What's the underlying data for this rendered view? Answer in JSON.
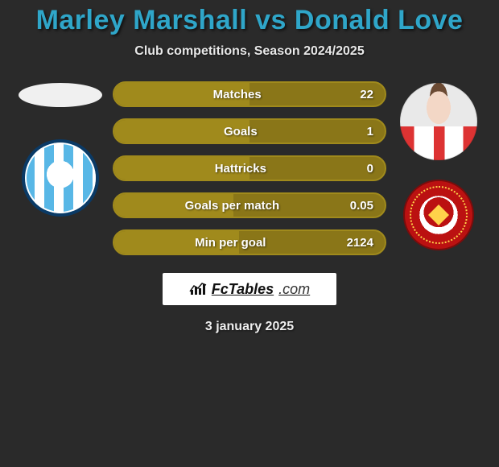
{
  "title_color": "#2fa6c9",
  "title": "Marley Marshall vs Donald Love",
  "subtitle": "Club competitions, Season 2024/2025",
  "date": "3 january 2025",
  "brand_text_a": "FcTables",
  "brand_text_b": ".com",
  "bar": {
    "border_color": "#a08a1c",
    "track_color": "#8a7618",
    "fill_color": "#a08a1c"
  },
  "rows": [
    {
      "label": "Matches",
      "value": "22",
      "fill_pct": 50
    },
    {
      "label": "Goals",
      "value": "1",
      "fill_pct": 50
    },
    {
      "label": "Hattricks",
      "value": "0",
      "fill_pct": 50
    },
    {
      "label": "Goals per match",
      "value": "0.05",
      "fill_pct": 44
    },
    {
      "label": "Min per goal",
      "value": "2124",
      "fill_pct": 46
    }
  ]
}
